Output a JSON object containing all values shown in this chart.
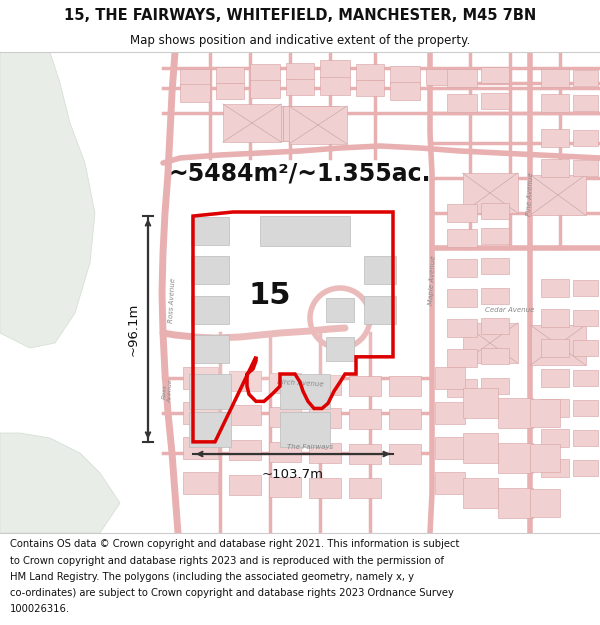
{
  "title": "15, THE FAIRWAYS, WHITEFIELD, MANCHESTER, M45 7BN",
  "subtitle": "Map shows position and indicative extent of the property.",
  "area_text": "~5484m²/~1.355ac.",
  "width_text": "~103.7m",
  "height_text": "~96.1m",
  "label_15": "15",
  "footer_text": "Contains OS data © Crown copyright and database right 2021. This information is subject to Crown copyright and database rights 2023 and is reproduced with the permission of HM Land Registry. The polygons (including the associated geometry, namely x, y co-ordinates) are subject to Crown copyright and database rights 2023 Ordnance Survey 100026316.",
  "map_bg": "#f5f3f0",
  "green_color": "#e8ede8",
  "green_dark": "#d0ddd0",
  "road_fill": "#e8e8e8",
  "road_edge": "#cccccc",
  "bld_fill": "#d8d8d8",
  "bld_edge": "#bbbbbb",
  "pink_road": "#e8b0b0",
  "pink_bld_fill": "#f0d0d0",
  "pink_bld_edge": "#d8a0a0",
  "red_line": "#dd0000",
  "dark_text": "#111111",
  "gray_text": "#888888",
  "arrow_color": "#333333",
  "header_bg": "#ffffff",
  "footer_bg": "#ffffff",
  "sep_color": "#cccccc",
  "title_fontsize": 10.5,
  "subtitle_fontsize": 8.5,
  "area_fontsize": 17,
  "label_fontsize": 22,
  "measure_fontsize": 9.5,
  "road_label_fontsize": 5,
  "footer_fontsize": 7.2
}
